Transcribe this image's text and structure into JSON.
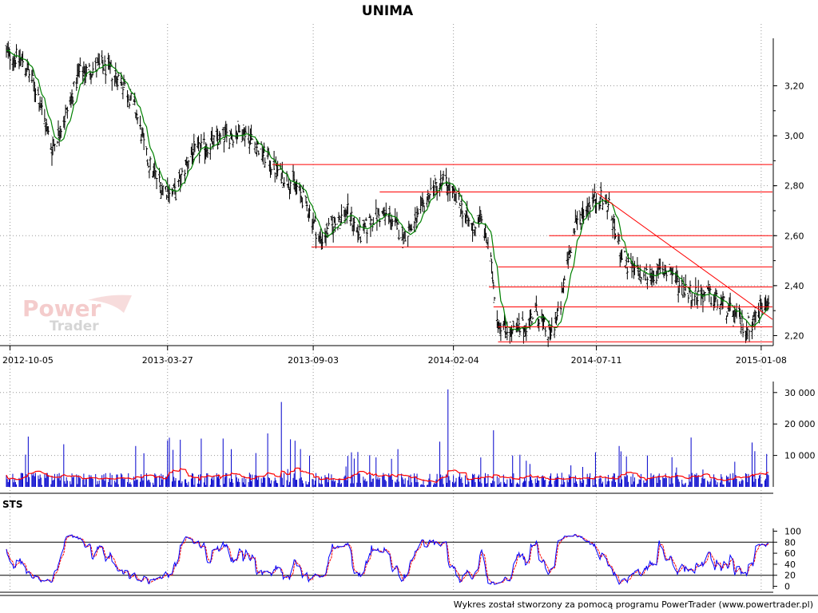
{
  "title": "UNIMA",
  "footer": "Wykres został stworzony za pomocą programu PowerTrader (www.powertrader.pl)",
  "watermark": {
    "line1": "Power",
    "line2": "Trader"
  },
  "chart_data": [
    {
      "type": "line",
      "panel": "price",
      "title": "UNIMA",
      "x_tick_labels": [
        "2012-10-05",
        "2013-03-27",
        "2013-09-03",
        "2014-02-04",
        "2014-07-11",
        "2015-01-08"
      ],
      "y_tick_labels": [
        "2,20",
        "2,40",
        "2,60",
        "2,80",
        "3,00",
        "3,20"
      ],
      "y_ticks": [
        2.2,
        2.4,
        2.6,
        2.8,
        3.0,
        3.2
      ],
      "ylim": [
        2.16,
        3.39
      ],
      "x_range": [
        "2012-10-01",
        "2015-01-16"
      ],
      "grid": true,
      "price_anchors": [
        [
          "2012-10-01",
          3.33
        ],
        [
          "2012-10-20",
          3.3
        ],
        [
          "2012-11-05",
          3.16
        ],
        [
          "2012-11-20",
          2.95
        ],
        [
          "2012-12-05",
          3.08
        ],
        [
          "2012-12-20",
          3.25
        ],
        [
          "2013-01-15",
          3.28
        ],
        [
          "2013-02-05",
          3.22
        ],
        [
          "2013-02-20",
          3.1
        ],
        [
          "2013-03-05",
          2.9
        ],
        [
          "2013-03-20",
          2.8
        ],
        [
          "2013-04-05",
          2.77
        ],
        [
          "2013-04-20",
          2.92
        ],
        [
          "2013-05-10",
          2.96
        ],
        [
          "2013-05-30",
          3.0
        ],
        [
          "2013-06-20",
          3.02
        ],
        [
          "2013-07-05",
          2.95
        ],
        [
          "2013-07-25",
          2.86
        ],
        [
          "2013-08-15",
          2.8
        ],
        [
          "2013-09-01",
          2.68
        ],
        [
          "2013-09-10",
          2.58
        ],
        [
          "2013-09-25",
          2.64
        ],
        [
          "2013-10-10",
          2.7
        ],
        [
          "2013-10-25",
          2.6
        ],
        [
          "2013-11-10",
          2.68
        ],
        [
          "2013-11-25",
          2.68
        ],
        [
          "2013-12-10",
          2.6
        ],
        [
          "2013-12-25",
          2.65
        ],
        [
          "2014-01-10",
          2.78
        ],
        [
          "2014-01-25",
          2.82
        ],
        [
          "2014-02-04",
          2.76
        ],
        [
          "2014-02-15",
          2.7
        ],
        [
          "2014-02-25",
          2.62
        ],
        [
          "2014-03-05",
          2.68
        ],
        [
          "2014-03-15",
          2.55
        ],
        [
          "2014-03-25",
          2.26
        ],
        [
          "2014-04-10",
          2.21
        ],
        [
          "2014-04-25",
          2.24
        ],
        [
          "2014-05-05",
          2.3
        ],
        [
          "2014-05-20",
          2.2
        ],
        [
          "2014-06-01",
          2.3
        ],
        [
          "2014-06-10",
          2.52
        ],
        [
          "2014-06-20",
          2.66
        ],
        [
          "2014-07-05",
          2.74
        ],
        [
          "2014-07-15",
          2.75
        ],
        [
          "2014-07-25",
          2.72
        ],
        [
          "2014-08-05",
          2.55
        ],
        [
          "2014-08-15",
          2.47
        ],
        [
          "2014-09-01",
          2.44
        ],
        [
          "2014-09-15",
          2.45
        ],
        [
          "2014-09-30",
          2.46
        ],
        [
          "2014-10-10",
          2.4
        ],
        [
          "2014-10-25",
          2.37
        ],
        [
          "2014-11-10",
          2.36
        ],
        [
          "2014-11-25",
          2.33
        ],
        [
          "2014-12-10",
          2.28
        ],
        [
          "2014-12-22",
          2.23
        ],
        [
          "2015-01-01",
          2.27
        ],
        [
          "2015-01-16",
          2.36
        ]
      ],
      "moving_average_color": "#008000",
      "bar_color": "#000000",
      "horizontal_lines": [
        {
          "y": 2.885,
          "from": "2013-07-20",
          "to": "2015-01-16"
        },
        {
          "y": 2.775,
          "from": "2013-11-15",
          "to": "2015-01-16"
        },
        {
          "y": 2.6,
          "from": "2014-05-20",
          "to": "2015-01-16"
        },
        {
          "y": 2.555,
          "from": "2013-09-01",
          "to": "2015-01-16"
        },
        {
          "y": 2.475,
          "from": "2014-03-25",
          "to": "2015-01-16"
        },
        {
          "y": 2.395,
          "from": "2014-03-15",
          "to": "2015-01-16"
        },
        {
          "y": 2.315,
          "from": "2014-03-20",
          "to": "2015-01-16"
        },
        {
          "y": 2.235,
          "from": "2014-03-25",
          "to": "2015-01-16"
        },
        {
          "y": 2.175,
          "from": "2014-03-25",
          "to": "2015-01-16"
        }
      ],
      "trend_line": {
        "from": [
          "2014-07-12",
          2.77
        ],
        "to": [
          "2015-01-16",
          2.265
        ]
      },
      "line_color": "#ff0000"
    },
    {
      "type": "bar",
      "panel": "volume",
      "y_tick_labels": [
        "10 000",
        "20 000",
        "30 000"
      ],
      "y_ticks": [
        10000,
        20000,
        30000
      ],
      "ylim": [
        0,
        33500
      ],
      "bar_color": "#0000cc",
      "average_color": "#ff0000",
      "spikes": [
        {
          "date": "2012-10-25",
          "value": 16000
        },
        {
          "date": "2013-02-20",
          "value": 13000
        },
        {
          "date": "2013-04-10",
          "value": 15000
        },
        {
          "date": "2013-06-05",
          "value": 12000
        },
        {
          "date": "2013-07-15",
          "value": 17000
        },
        {
          "date": "2013-07-30",
          "value": 27000
        },
        {
          "date": "2013-08-10",
          "value": 16000
        },
        {
          "date": "2013-10-15",
          "value": 11000
        },
        {
          "date": "2013-12-05",
          "value": 12000
        },
        {
          "date": "2014-01-25",
          "value": 29000
        },
        {
          "date": "2014-01-29",
          "value": 31000
        },
        {
          "date": "2014-03-20",
          "value": 18000
        },
        {
          "date": "2014-04-10",
          "value": 10000
        },
        {
          "date": "2014-07-10",
          "value": 11000
        },
        {
          "date": "2014-08-05",
          "value": 13000
        },
        {
          "date": "2014-09-05",
          "value": 10000
        },
        {
          "date": "2014-12-10",
          "value": 8000
        }
      ],
      "baseline_level": 2500
    },
    {
      "type": "line",
      "panel": "oscillator",
      "label": "STS",
      "y_tick_labels": [
        "0",
        "20",
        "40",
        "60",
        "80",
        "100"
      ],
      "y_ticks": [
        0,
        20,
        40,
        60,
        80,
        100
      ],
      "ylim": [
        -5,
        105
      ],
      "reference_levels": [
        20,
        80
      ],
      "series": [
        {
          "color": "#0000ff"
        },
        {
          "color": "#ff0000"
        }
      ]
    }
  ]
}
